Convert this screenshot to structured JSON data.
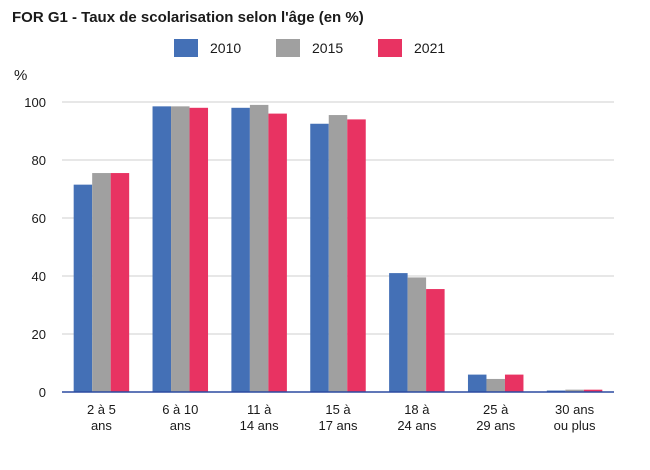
{
  "chart_data": {
    "type": "bar",
    "title": "FOR G1 - Taux de scolarisation selon l'âge (en %)",
    "ylabel": "%",
    "xlabel": "",
    "ylim": [
      0,
      100
    ],
    "yticks": [
      0,
      20,
      40,
      60,
      80,
      100
    ],
    "grid": true,
    "legend_position": "top",
    "categories": [
      [
        "2 à 5",
        "ans"
      ],
      [
        "6 à 10",
        "ans"
      ],
      [
        "11 à",
        "14 ans"
      ],
      [
        "15 à",
        "17 ans"
      ],
      [
        "18 à",
        "24 ans"
      ],
      [
        "25 à",
        "29 ans"
      ],
      [
        "30 ans",
        "ou plus"
      ]
    ],
    "series": [
      {
        "name": "2010",
        "color": "#4470b6",
        "values": [
          71.5,
          98.5,
          98,
          92.5,
          41,
          6,
          0.5
        ]
      },
      {
        "name": "2015",
        "color": "#a0a0a0",
        "values": [
          75.5,
          98.5,
          99,
          95.5,
          39.5,
          4.5,
          0.8
        ]
      },
      {
        "name": "2021",
        "color": "#e83362",
        "values": [
          75.5,
          98,
          96,
          94,
          35.5,
          6,
          0.8
        ]
      }
    ]
  }
}
